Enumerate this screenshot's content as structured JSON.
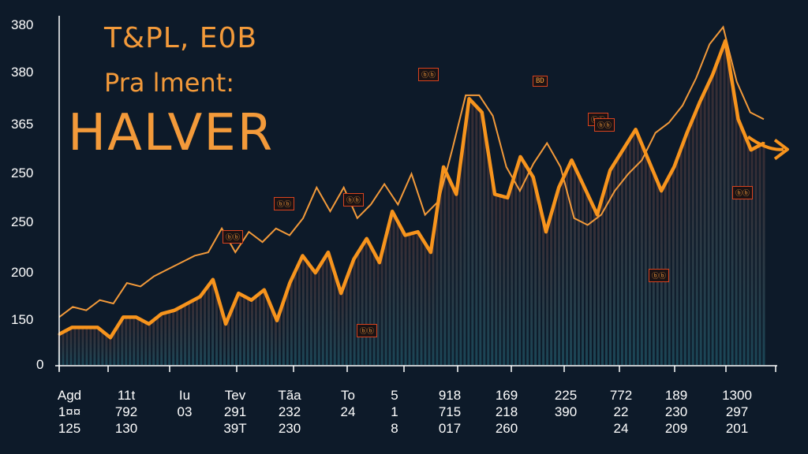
{
  "chart_title": {
    "line1": "T&PL, E0B",
    "line2": "Pra lment:",
    "line3": "HALVER"
  },
  "colors": {
    "background": "#0d1a29",
    "line_main": "#f7941d",
    "line_upper": "#f39a3a",
    "bars": "#3a3f4d",
    "accent_red": "#d8431f",
    "axis": "#ffffff"
  },
  "chart_data": {
    "type": "line",
    "y_tick_labels": [
      "380",
      "380",
      "365",
      "250",
      "250",
      "200",
      "150",
      "0"
    ],
    "x_tick_labels": [
      [
        "Agd",
        "1¤¤",
        "125"
      ],
      [
        "11t",
        "792",
        "130"
      ],
      [
        "Iu",
        "03",
        ""
      ],
      [
        "Tev",
        "291",
        "39T"
      ],
      [
        "Tãa",
        "232",
        "230"
      ],
      [
        "To",
        "24",
        ""
      ],
      [
        "5",
        "1",
        "8"
      ],
      [
        "918",
        "715",
        "017"
      ],
      [
        "169",
        "218",
        "260"
      ],
      [
        "225",
        "390",
        ""
      ],
      [
        "772",
        "22",
        "24"
      ],
      [
        "189",
        "230",
        "209"
      ],
      [
        "1300",
        "297",
        "201"
      ]
    ],
    "series": [
      {
        "values": [
          0.09,
          0.11,
          0.11,
          0.11,
          0.08,
          0.14,
          0.14,
          0.12,
          0.15,
          0.16,
          0.18,
          0.2,
          0.25,
          0.12,
          0.21,
          0.19,
          0.22,
          0.13,
          0.24,
          0.32,
          0.27,
          0.33,
          0.21,
          0.31,
          0.37,
          0.3,
          0.45,
          0.38,
          0.39,
          0.33,
          0.58,
          0.5,
          0.78,
          0.74,
          0.5,
          0.49,
          0.61,
          0.55,
          0.39,
          0.52,
          0.6,
          0.52,
          0.44,
          0.57,
          0.63,
          0.69,
          0.6,
          0.51,
          0.58,
          0.68,
          0.77,
          0.85,
          0.95,
          0.72,
          0.63,
          0.65
        ]
      },
      {
        "values": [
          0.14,
          0.17,
          0.16,
          0.19,
          0.18,
          0.24,
          0.23,
          0.26,
          0.28,
          0.3,
          0.32,
          0.33,
          0.4,
          0.33,
          0.39,
          0.36,
          0.4,
          0.38,
          0.43,
          0.52,
          0.45,
          0.52,
          0.43,
          0.47,
          0.53,
          0.47,
          0.56,
          0.44,
          0.48,
          0.63,
          0.79,
          0.79,
          0.73,
          0.58,
          0.51,
          0.59,
          0.65,
          0.58,
          0.43,
          0.41,
          0.44,
          0.51,
          0.56,
          0.6,
          0.68,
          0.71,
          0.76,
          0.84,
          0.94,
          0.99,
          0.83,
          0.74,
          0.72
        ]
      }
    ],
    "annotations": [
      "ⓑⓑ",
      "BD",
      "ⓑⓑ",
      "ⓑⓑ",
      "ⓑⓑ",
      "ⓑⓑ",
      "ⓑⓑ",
      "ⓑⓑ",
      "ⓑⓑ",
      "ⓑⓑ"
    ],
    "grid": false
  }
}
